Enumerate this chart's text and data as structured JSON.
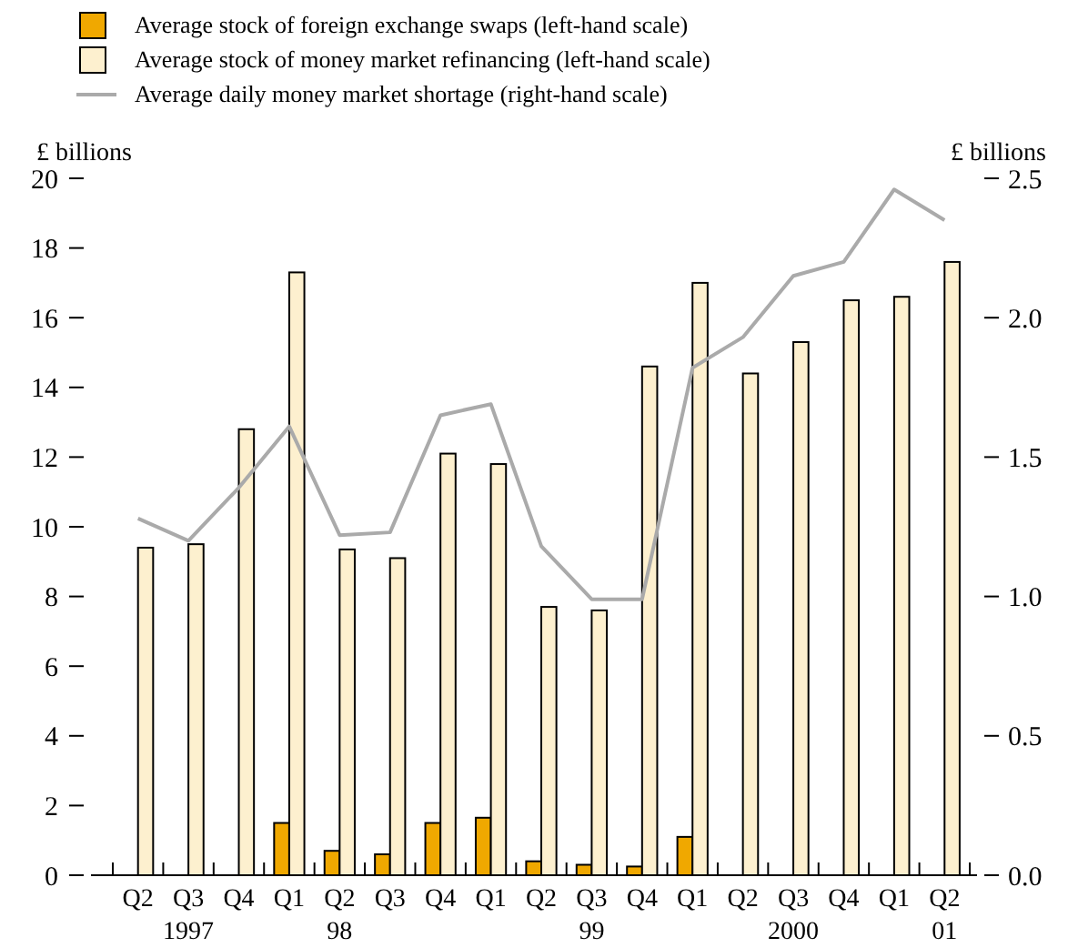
{
  "chart_data": {
    "type": "bar",
    "ylabel": "£ billions",
    "y2label": "£ billions",
    "categories": [
      "Q2",
      "Q3\n1997",
      "Q4",
      "Q1",
      "Q2\n98",
      "Q3",
      "Q4",
      "Q1",
      "Q2",
      "Q3\n99",
      "Q4",
      "Q1",
      "Q2",
      "Q3\n2000",
      "Q4",
      "Q1",
      "Q2\n01"
    ],
    "series": [
      {
        "name": "Average stock of foreign exchange swaps (left-hand scale)",
        "color": "#f0a800",
        "values": [
          null,
          null,
          null,
          1.5,
          0.7,
          0.6,
          1.5,
          1.65,
          0.4,
          0.3,
          0.25,
          1.1,
          null,
          null,
          null,
          null,
          null
        ]
      },
      {
        "name": "Average stock of money market refinancing (left-hand scale)",
        "color": "#fdf0cf",
        "values": [
          9.4,
          9.5,
          12.8,
          17.3,
          9.35,
          9.1,
          12.1,
          11.8,
          7.7,
          7.6,
          14.6,
          17.0,
          14.4,
          15.3,
          16.5,
          16.6,
          17.6
        ]
      },
      {
        "name": "Average daily money market shortage (right-hand scale)",
        "type": "line",
        "axis": "y2",
        "color": "#aaaaaa",
        "values": [
          1.28,
          1.2,
          1.39,
          1.61,
          1.22,
          1.23,
          1.65,
          1.69,
          1.18,
          0.99,
          0.99,
          1.82,
          1.93,
          2.15,
          2.2,
          2.46,
          2.35
        ]
      }
    ],
    "ylim": [
      0,
      20
    ],
    "yticks": [
      0,
      2,
      4,
      6,
      8,
      10,
      12,
      14,
      16,
      18,
      20
    ],
    "y2lim": [
      0,
      2.5
    ],
    "y2ticks": [
      {
        "value": 0,
        "label": "0.0"
      },
      0.5,
      {
        "value": 1,
        "label": "1.0"
      },
      1.5,
      {
        "value": 2,
        "label": "2.0"
      },
      2.5
    ],
    "grid": false,
    "legend": "top left",
    "marker": "none",
    "line_style": "solid"
  }
}
